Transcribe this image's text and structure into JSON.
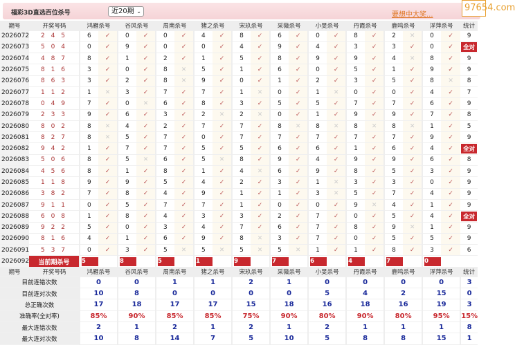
{
  "header": {
    "title": "福彩3D直选百位杀号",
    "period_select": "近20期",
    "promo_link": "要想中大奖...",
    "watermark": "97654.com"
  },
  "columns": {
    "issue": "期号",
    "draw": "开奖号码",
    "experts": [
      "鸿雁杀号",
      "谷风杀号",
      "周南杀号",
      "猪之杀号",
      "宋玖杀号",
      "采薇杀号",
      "小旻杀号",
      "丹霞杀号",
      "鹿鸣杀号",
      "浮萍杀号"
    ],
    "stat": "统计"
  },
  "marks": {
    "right": "✓",
    "wrong": "✕",
    "all_right": "全对"
  },
  "rows": [
    {
      "issue": "2026072",
      "draw": "2 4 5",
      "kills": [
        6,
        0,
        0,
        4,
        8,
        6,
        0,
        8,
        2,
        0
      ],
      "stat": "9"
    },
    {
      "issue": "2026073",
      "draw": "5 0 4",
      "kills": [
        0,
        9,
        0,
        0,
        4,
        9,
        4,
        3,
        3,
        0
      ],
      "stat": "全对"
    },
    {
      "issue": "2026074",
      "draw": "4 8 7",
      "kills": [
        8,
        1,
        2,
        1,
        5,
        8,
        9,
        9,
        4,
        8
      ],
      "stat": "9"
    },
    {
      "issue": "2026075",
      "draw": "8 1 6",
      "kills": [
        3,
        0,
        8,
        5,
        1,
        6,
        0,
        5,
        1,
        9
      ],
      "stat": "9"
    },
    {
      "issue": "2026076",
      "draw": "8 6 3",
      "kills": [
        3,
        2,
        8,
        9,
        0,
        1,
        2,
        3,
        5,
        8
      ],
      "stat": "8"
    },
    {
      "issue": "2026077",
      "draw": "1 1 2",
      "kills": [
        1,
        3,
        7,
        7,
        1,
        0,
        1,
        0,
        0,
        4
      ],
      "stat": "7"
    },
    {
      "issue": "2026078",
      "draw": "0 4 9",
      "kills": [
        7,
        0,
        6,
        8,
        3,
        5,
        5,
        7,
        7,
        6
      ],
      "stat": "9"
    },
    {
      "issue": "2026079",
      "draw": "2 3 3",
      "kills": [
        9,
        6,
        3,
        2,
        2,
        0,
        1,
        9,
        9,
        7
      ],
      "stat": "8"
    },
    {
      "issue": "2026080",
      "draw": "8 0 2",
      "kills": [
        8,
        4,
        2,
        7,
        7,
        8,
        8,
        8,
        8,
        1
      ],
      "stat": "5"
    },
    {
      "issue": "2026081",
      "draw": "8 2 7",
      "kills": [
        8,
        5,
        7,
        0,
        7,
        7,
        7,
        7,
        7,
        9
      ],
      "stat": "9"
    },
    {
      "issue": "2026082",
      "draw": "9 4 2",
      "kills": [
        1,
        7,
        7,
        5,
        5,
        6,
        6,
        1,
        6,
        4
      ],
      "stat": "全对"
    },
    {
      "issue": "2026083",
      "draw": "5 0 6",
      "kills": [
        8,
        5,
        6,
        5,
        8,
        9,
        4,
        9,
        9,
        6
      ],
      "stat": "8"
    },
    {
      "issue": "2026084",
      "draw": "4 5 6",
      "kills": [
        8,
        1,
        8,
        1,
        4,
        6,
        9,
        8,
        5,
        3
      ],
      "stat": "9"
    },
    {
      "issue": "2026085",
      "draw": "1 1 8",
      "kills": [
        9,
        9,
        5,
        4,
        2,
        3,
        1,
        3,
        3,
        0
      ],
      "stat": "9"
    },
    {
      "issue": "2026086",
      "draw": "3 8 2",
      "kills": [
        7,
        8,
        4,
        9,
        1,
        1,
        3,
        5,
        7,
        4
      ],
      "stat": "9"
    },
    {
      "issue": "2026087",
      "draw": "9 1 1",
      "kills": [
        0,
        5,
        7,
        7,
        1,
        0,
        0,
        9,
        4,
        1
      ],
      "stat": "9"
    },
    {
      "issue": "2026088",
      "draw": "6 0 8",
      "kills": [
        1,
        8,
        4,
        3,
        3,
        2,
        7,
        0,
        5,
        4
      ],
      "stat": "全对"
    },
    {
      "issue": "2026089",
      "draw": "9 2 2",
      "kills": [
        5,
        0,
        3,
        4,
        7,
        6,
        7,
        8,
        9,
        1
      ],
      "stat": "9"
    },
    {
      "issue": "2026090",
      "draw": "8 1 6",
      "kills": [
        4,
        1,
        6,
        9,
        8,
        3,
        7,
        0,
        5,
        5
      ],
      "stat": "9"
    },
    {
      "issue": "2026091",
      "draw": "5 3 7",
      "kills": [
        0,
        3,
        5,
        5,
        5,
        5,
        1,
        1,
        8,
        3
      ],
      "stat": "6"
    }
  ],
  "current": {
    "issue": "2026092",
    "label": "当前期杀号",
    "kills": [
      5,
      8,
      5,
      1,
      9,
      7,
      6,
      4,
      7,
      0
    ]
  },
  "stats": [
    {
      "label": "目前连错次数",
      "values": [
        "0",
        "0",
        "1",
        "1",
        "2",
        "1",
        "0",
        "0",
        "0",
        "0",
        "3"
      ]
    },
    {
      "label": "目前连对次数",
      "values": [
        "10",
        "8",
        "0",
        "0",
        "0",
        "0",
        "5",
        "4",
        "2",
        "15",
        "0"
      ]
    },
    {
      "label": "总正确次数",
      "values": [
        "17",
        "18",
        "17",
        "17",
        "15",
        "18",
        "16",
        "18",
        "16",
        "19",
        "3"
      ]
    },
    {
      "label": "准确率(全对率)",
      "values": [
        "85%",
        "90%",
        "85%",
        "85%",
        "75%",
        "90%",
        "80%",
        "90%",
        "80%",
        "95%",
        "15%"
      ],
      "red": true
    },
    {
      "label": "最大连错次数",
      "values": [
        "2",
        "1",
        "2",
        "1",
        "2",
        "1",
        "2",
        "1",
        "1",
        "1",
        "8"
      ]
    },
    {
      "label": "最大连对次数",
      "values": [
        "10",
        "8",
        "14",
        "7",
        "5",
        "10",
        "5",
        "8",
        "8",
        "15",
        "1"
      ]
    }
  ]
}
